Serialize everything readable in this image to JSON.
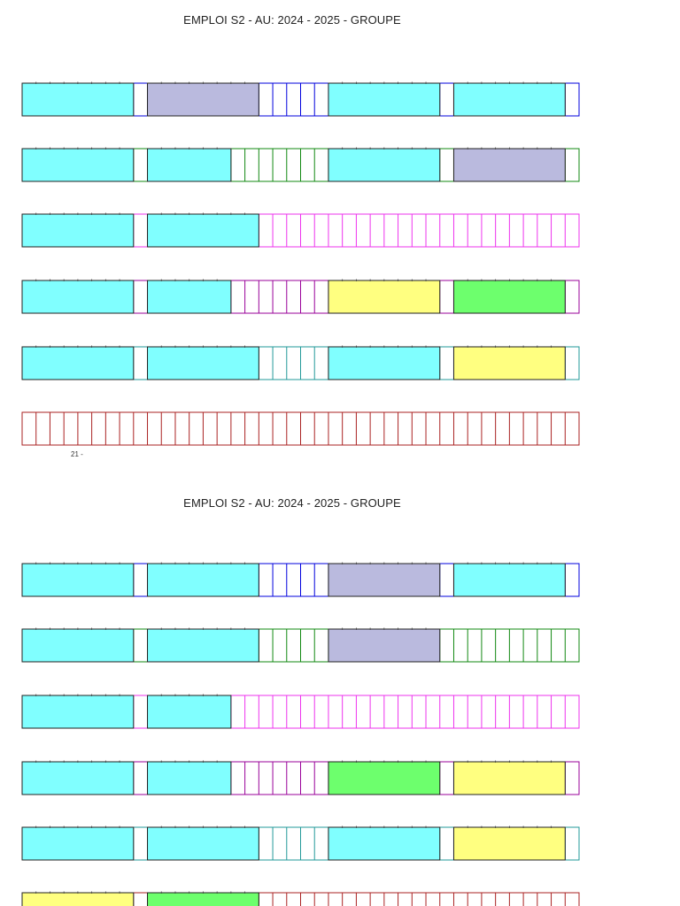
{
  "pages": [
    {
      "title": "EMPLOI S2 - AU: 2024 - 2025 - GROUPE",
      "footer": "21 -",
      "rows": [
        {
          "line_color": "#0000dd",
          "blocks": [
            {
              "slot": 0,
              "span": 8,
              "color": "#80ffff"
            },
            {
              "slot": 9,
              "span": 8,
              "color": "#babade"
            },
            {
              "slot": 22,
              "span": 8,
              "color": "#80ffff"
            },
            {
              "slot": 31,
              "span": 8,
              "color": "#80ffff"
            }
          ]
        },
        {
          "line_color": "#118811",
          "blocks": [
            {
              "slot": 0,
              "span": 8,
              "color": "#80ffff"
            },
            {
              "slot": 9,
              "span": 6,
              "color": "#80ffff"
            },
            {
              "slot": 22,
              "span": 8,
              "color": "#80ffff"
            },
            {
              "slot": 31,
              "span": 8,
              "color": "#babade"
            }
          ]
        },
        {
          "line_color": "#ee33ee",
          "blocks": [
            {
              "slot": 0,
              "span": 8,
              "color": "#80ffff"
            },
            {
              "slot": 9,
              "span": 8,
              "color": "#80ffff"
            }
          ]
        },
        {
          "line_color": "#990099",
          "blocks": [
            {
              "slot": 0,
              "span": 8,
              "color": "#80ffff"
            },
            {
              "slot": 9,
              "span": 6,
              "color": "#80ffff"
            },
            {
              "slot": 22,
              "span": 8,
              "color": "#ffff80"
            },
            {
              "slot": 31,
              "span": 8,
              "color": "#6dff6d"
            }
          ]
        },
        {
          "line_color": "#229999",
          "blocks": [
            {
              "slot": 0,
              "span": 8,
              "color": "#80ffff"
            },
            {
              "slot": 9,
              "span": 8,
              "color": "#80ffff"
            },
            {
              "slot": 22,
              "span": 8,
              "color": "#80ffff"
            },
            {
              "slot": 31,
              "span": 8,
              "color": "#ffff80"
            }
          ]
        },
        {
          "line_color": "#aa2222",
          "blocks": []
        }
      ]
    },
    {
      "title": "EMPLOI S2 - AU: 2024 - 2025 - GROUPE",
      "rows": [
        {
          "line_color": "#0000dd",
          "blocks": [
            {
              "slot": 0,
              "span": 8,
              "color": "#80ffff"
            },
            {
              "slot": 9,
              "span": 8,
              "color": "#80ffff"
            },
            {
              "slot": 22,
              "span": 8,
              "color": "#babade"
            },
            {
              "slot": 31,
              "span": 8,
              "color": "#80ffff"
            }
          ]
        },
        {
          "line_color": "#118811",
          "blocks": [
            {
              "slot": 0,
              "span": 8,
              "color": "#80ffff"
            },
            {
              "slot": 9,
              "span": 8,
              "color": "#80ffff"
            },
            {
              "slot": 22,
              "span": 8,
              "color": "#babade"
            }
          ]
        },
        {
          "line_color": "#ee33ee",
          "blocks": [
            {
              "slot": 0,
              "span": 8,
              "color": "#80ffff"
            },
            {
              "slot": 9,
              "span": 6,
              "color": "#80ffff"
            }
          ]
        },
        {
          "line_color": "#990099",
          "blocks": [
            {
              "slot": 0,
              "span": 8,
              "color": "#80ffff"
            },
            {
              "slot": 9,
              "span": 6,
              "color": "#80ffff"
            },
            {
              "slot": 22,
              "span": 8,
              "color": "#6dff6d"
            },
            {
              "slot": 31,
              "span": 8,
              "color": "#ffff80"
            }
          ]
        },
        {
          "line_color": "#229999",
          "blocks": [
            {
              "slot": 0,
              "span": 8,
              "color": "#80ffff"
            },
            {
              "slot": 9,
              "span": 8,
              "color": "#80ffff"
            },
            {
              "slot": 22,
              "span": 8,
              "color": "#80ffff"
            },
            {
              "slot": 31,
              "span": 8,
              "color": "#ffff80"
            }
          ]
        },
        {
          "line_color": "#aa2222",
          "blocks": [
            {
              "slot": 0,
              "span": 8,
              "color": "#ffff80"
            },
            {
              "slot": 9,
              "span": 8,
              "color": "#6dff6d"
            }
          ]
        }
      ]
    }
  ]
}
